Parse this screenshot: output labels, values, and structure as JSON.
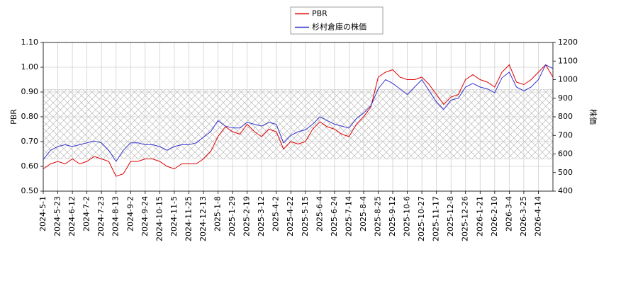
{
  "chart_data": {
    "type": "line",
    "categories": [
      "2024-5-1",
      null,
      "2024-5-23",
      null,
      "2024-6-12",
      null,
      "2024-7-2",
      null,
      "2024-7-23",
      null,
      "2024-8-13",
      null,
      "2024-9-2",
      null,
      "2024-9-24",
      null,
      "2024-10-15",
      null,
      "2024-11-5",
      null,
      "2024-11-25",
      null,
      "2024-12-13",
      null,
      "2025-1-8",
      null,
      "2025-1-29",
      null,
      "2025-2-19",
      null,
      "2025-3-12",
      null,
      "2025-4-2",
      null,
      "2025-4-22",
      null,
      "2025-5-15",
      null,
      "2025-6-4",
      null,
      "2025-6-24",
      null,
      "2025-7-14",
      null,
      "2025-8-4",
      null,
      "2025-8-25",
      null,
      "2025-9-12",
      null,
      "2025-10-6",
      null,
      "2025-10-27",
      null,
      "2025-11-17",
      null,
      "2025-12-8",
      null,
      "2025-12-26",
      null,
      "2026-1-21",
      null,
      "2026-2-10",
      null,
      "2026-3-4",
      null,
      "2026-3-25",
      null,
      "2026-4-14",
      null,
      null
    ],
    "y_label": "PBR",
    "y2_label": "株価",
    "ylim": [
      0.5,
      1.1
    ],
    "yticks": [
      {
        "value": 0.5,
        "label": "0.50"
      },
      {
        "value": 0.6,
        "label": "0.60"
      },
      {
        "value": 0.7,
        "label": "0.70"
      },
      {
        "value": 0.8,
        "label": "0.80"
      },
      {
        "value": 0.9,
        "label": "0.90"
      },
      {
        "value": 1.0,
        "label": "1.00"
      },
      {
        "value": 1.1,
        "label": "1.10"
      }
    ],
    "y2lim": [
      400,
      1200
    ],
    "y2ticks": [
      400,
      500,
      600,
      700,
      800,
      900,
      1000,
      1100,
      1200
    ],
    "grid": true,
    "hatch_band": {
      "ymin": 0.63,
      "ymax": 0.91,
      "color": "#999999"
    },
    "series": [
      {
        "name": "PBR",
        "color": "#dd0000",
        "values": [
          0.59,
          0.61,
          0.62,
          0.61,
          0.63,
          0.61,
          0.62,
          0.64,
          0.63,
          0.62,
          0.56,
          0.57,
          0.62,
          0.62,
          0.63,
          0.63,
          0.62,
          0.6,
          0.59,
          0.61,
          0.61,
          0.61,
          0.63,
          0.66,
          0.72,
          0.76,
          0.74,
          0.73,
          0.77,
          0.74,
          0.72,
          0.75,
          0.74,
          0.67,
          0.7,
          0.69,
          0.7,
          0.75,
          0.78,
          0.76,
          0.75,
          0.73,
          0.72,
          0.77,
          0.8,
          0.84,
          0.96,
          0.98,
          0.99,
          0.96,
          0.95,
          0.95,
          0.96,
          0.93,
          0.89,
          0.85,
          0.88,
          0.89,
          0.95,
          0.97,
          0.95,
          0.94,
          0.92,
          0.98,
          1.01,
          0.94,
          0.93,
          0.95,
          0.98,
          1.01,
          0.96
        ]
      },
      {
        "name": "杉村倉庫の株価",
        "color": "#3333cc",
        "axis": "y2",
        "values": [
          570,
          620,
          640,
          650,
          640,
          650,
          660,
          670,
          660,
          620,
          560,
          620,
          660,
          660,
          650,
          650,
          640,
          620,
          640,
          650,
          650,
          660,
          690,
          720,
          780,
          750,
          740,
          740,
          770,
          760,
          750,
          770,
          760,
          660,
          700,
          720,
          730,
          760,
          800,
          780,
          760,
          750,
          740,
          790,
          820,
          860,
          950,
          1000,
          980,
          950,
          920,
          960,
          1000,
          940,
          880,
          840,
          890,
          900,
          960,
          980,
          960,
          950,
          930,
          1010,
          1040,
          960,
          940,
          960,
          1000,
          1080,
          1060
        ]
      }
    ],
    "legend": "top"
  }
}
